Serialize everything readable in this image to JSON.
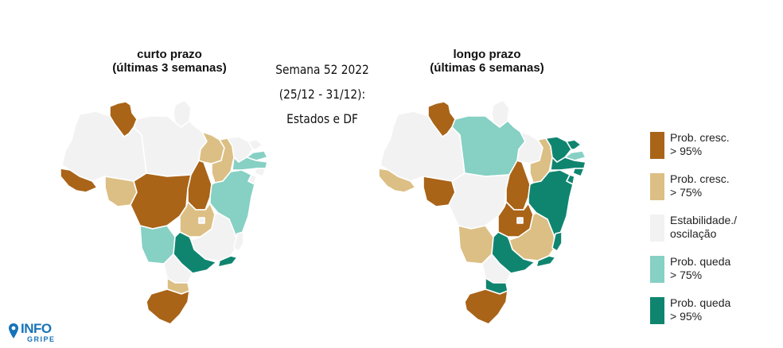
{
  "maps": [
    {
      "title_line1": "curto prazo",
      "title_line2": "(últimas 3 semanas)",
      "states": {
        "RR": "p95",
        "AP": "estavel",
        "AM": "estavel",
        "PA": "estavel",
        "AC": "p95",
        "RO": "p75",
        "MT": "p95",
        "TO": "p95",
        "MA": "p75",
        "PI": "p75",
        "CE": "estavel",
        "RN": "estavel",
        "PB": "q75",
        "PE": "q75",
        "AL": "estavel",
        "SE": "estavel",
        "BA": "q75",
        "GO": "p75",
        "DF": "estavel",
        "MG": "estavel",
        "ES": "estavel",
        "MS": "q75",
        "SP": "q95",
        "RJ": "q95",
        "PR": "estavel",
        "SC": "p75",
        "RS": "p95"
      }
    },
    {
      "title_line1": "longo prazo",
      "title_line2": "(últimas 6 semanas)",
      "states": {
        "RR": "p95",
        "AP": "estavel",
        "AM": "estavel",
        "PA": "q75",
        "AC": "p75",
        "RO": "p95",
        "MT": "estavel",
        "TO": "p95",
        "MA": "estavel",
        "PI": "p75",
        "CE": "q95",
        "RN": "q95",
        "PB": "q75",
        "PE": "q95",
        "AL": "q95",
        "SE": "q95",
        "BA": "q95",
        "GO": "p95",
        "DF": "estavel",
        "MG": "p75",
        "ES": "q95",
        "MS": "p75",
        "SP": "q95",
        "RJ": "q95",
        "PR": "estavel",
        "SC": "q95",
        "RS": "p95"
      }
    }
  ],
  "week": {
    "line1": "Semana 52 2022",
    "line2": "(25/12 - 31/12):",
    "line3": "Estados e DF"
  },
  "legend": [
    {
      "key": "p95",
      "line1": "Prob. cresc.",
      "line2": "> 95%",
      "color": "#a96418"
    },
    {
      "key": "p75",
      "line1": "Prob. cresc.",
      "line2": "> 75%",
      "color": "#dcbf84"
    },
    {
      "key": "estavel",
      "line1": "Estabilidade./",
      "line2": "oscilação",
      "color": "#f2f2f2"
    },
    {
      "key": "q75",
      "line1": "Prob. queda",
      "line2": "> 75%",
      "color": "#86d0c4"
    },
    {
      "key": "q95",
      "line1": "Prob. queda",
      "line2": "> 95%",
      "color": "#0f8570"
    }
  ],
  "logo": {
    "text": "INFO",
    "subtext": "GRIPE",
    "color": "#1773b8"
  }
}
